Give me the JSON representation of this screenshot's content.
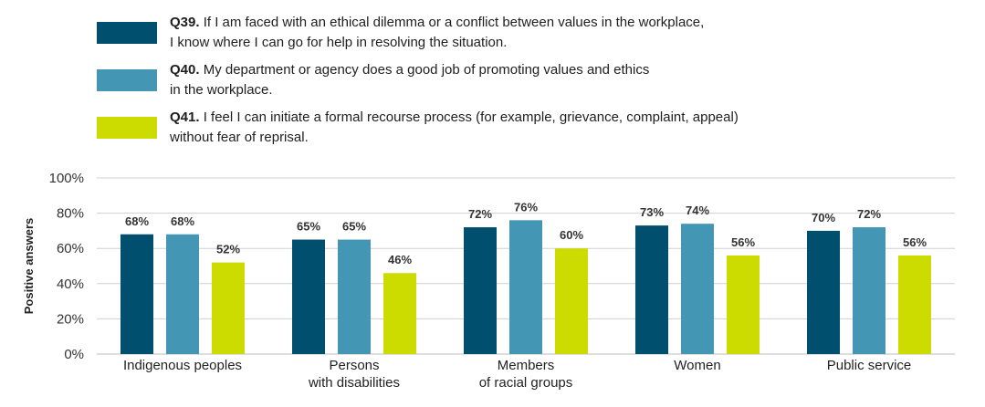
{
  "legend": [
    {
      "q": "Q39.",
      "line1": " If I am faced with an ethical dilemma or a conflict between values in the workplace,",
      "line2": "I know where I can go for help in resolving the situation.",
      "color": "#004f6e"
    },
    {
      "q": "Q40.",
      "line1": " My department or agency does a good job of promoting values and ethics",
      "line2": "in the workplace.",
      "color": "#4397b5"
    },
    {
      "q": "Q41.",
      "line1": " I feel I can initiate a formal recourse process (for example, grievance, complaint, appeal)",
      "line2": "without fear of reprisal.",
      "color": "#cddc00"
    }
  ],
  "chart_data": {
    "type": "bar",
    "ylabel": "Positive answers",
    "ylim": [
      0,
      100
    ],
    "yticks": [
      "0%",
      "20%",
      "40%",
      "60%",
      "80%",
      "100%"
    ],
    "grid": true,
    "categories": [
      [
        "Indigenous peoples"
      ],
      [
        "Persons",
        "with disabilities"
      ],
      [
        "Members",
        "of racial groups"
      ],
      [
        "Women"
      ],
      [
        "Public service"
      ]
    ],
    "series": [
      {
        "name": "Q39",
        "color": "#004f6e",
        "values": [
          68,
          65,
          72,
          73,
          70
        ],
        "labels": [
          "68%",
          "65%",
          "72%",
          "73%",
          "70%"
        ]
      },
      {
        "name": "Q40",
        "color": "#4397b5",
        "values": [
          68,
          65,
          76,
          74,
          72
        ],
        "labels": [
          "68%",
          "65%",
          "76%",
          "74%",
          "72%"
        ]
      },
      {
        "name": "Q41",
        "color": "#cddc00",
        "values": [
          52,
          46,
          60,
          56,
          56
        ],
        "labels": [
          "52%",
          "46%",
          "60%",
          "56%",
          "56%"
        ]
      }
    ]
  }
}
